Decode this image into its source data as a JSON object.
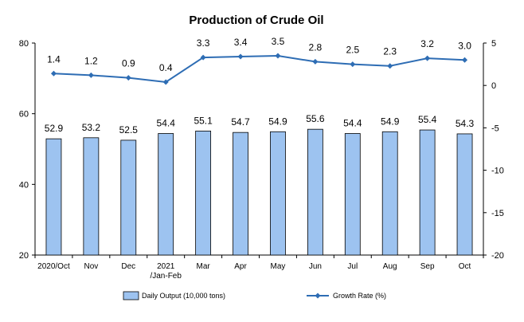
{
  "chart_data": {
    "type": "bar",
    "title": "Production of Crude Oil",
    "categories": [
      "2020/Oct",
      "Nov",
      "Dec",
      "2021\n/Jan-Feb",
      "Mar",
      "Apr",
      "May",
      "Jun",
      "Jul",
      "Aug",
      "Sep",
      "Oct"
    ],
    "series": [
      {
        "name": "Daily Output (10,000 tons)",
        "kind": "bar",
        "axis": "left",
        "color": "#9DC3F0",
        "values": [
          52.9,
          53.2,
          52.5,
          54.4,
          55.1,
          54.7,
          54.9,
          55.6,
          54.4,
          54.9,
          55.4,
          54.3
        ]
      },
      {
        "name": "Growth Rate (%)",
        "kind": "line",
        "axis": "right",
        "color": "#2E6DB4",
        "values": [
          1.4,
          1.2,
          0.9,
          0.4,
          3.3,
          3.4,
          3.5,
          2.8,
          2.5,
          2.3,
          3.2,
          3.0
        ]
      }
    ],
    "y_left": {
      "min": 20,
      "max": 80,
      "ticks": [
        20,
        40,
        60,
        80
      ]
    },
    "y_right": {
      "min": -20,
      "max": 5,
      "ticks": [
        -20,
        -15,
        -10,
        -5,
        0,
        5
      ]
    },
    "grid": false,
    "legend_position": "bottom"
  }
}
